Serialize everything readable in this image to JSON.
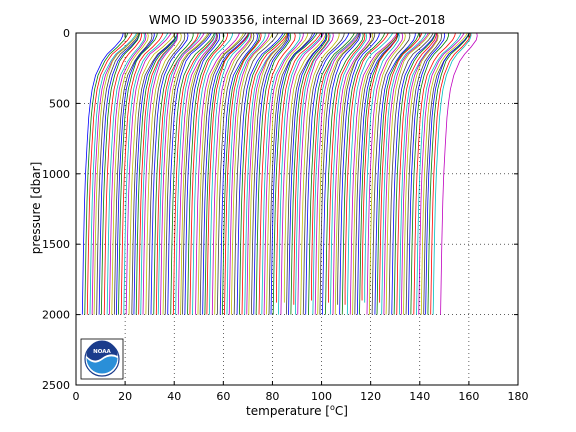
{
  "chart_data": {
    "type": "line",
    "title": "WMO ID 5903356, internal ID 3669, 23–Oct–2018",
    "xlabel_pre": "temperature [",
    "xlabel_sup": "o",
    "xlabel_post": "C]",
    "ylabel": "pressure [dbar]",
    "xlim": [
      0,
      180
    ],
    "ylim": [
      2500,
      0
    ],
    "y_reversed": true,
    "grid": true,
    "x_ticks": [
      0,
      20,
      40,
      60,
      80,
      100,
      120,
      140,
      160,
      180
    ],
    "y_ticks": [
      0,
      500,
      1000,
      1500,
      2000,
      2500
    ],
    "x_tick_labels": [
      "0",
      "20",
      "40",
      "60",
      "80",
      "100",
      "120",
      "140",
      "160",
      "180"
    ],
    "y_tick_labels": [
      "0",
      "500",
      "1000",
      "1500",
      "2000",
      "2500"
    ],
    "profile_template": {
      "pressure": [
        0,
        20,
        50,
        100,
        150,
        200,
        300,
        400,
        500,
        600,
        800,
        1000,
        1200,
        1500,
        1800,
        2000
      ],
      "temperature_anomaly": [
        18.0,
        17.8,
        17.0,
        14.5,
        11.5,
        9.5,
        7.0,
        5.6,
        4.8,
        4.2,
        3.5,
        2.9,
        2.5,
        2.1,
        1.8,
        1.6
      ]
    },
    "series_summary": {
      "profile_count": 145,
      "offset_step": 1.0,
      "first_deep_temperature": 2.5,
      "deep_pressure_typical": 2000,
      "deep_pressure_late": 1900,
      "last_profile_deep_temperature": 148.5,
      "last_profile_max_pressure": 2000
    },
    "palette": [
      "#0000ff",
      "#008000",
      "#ff0000",
      "#00bfbf",
      "#bf00bf",
      "#bfbf00",
      "#404040"
    ],
    "logo": {
      "text": "NOAA",
      "colors": [
        "#1a3c8c",
        "#ffffff",
        "#2a8fd8"
      ]
    }
  }
}
